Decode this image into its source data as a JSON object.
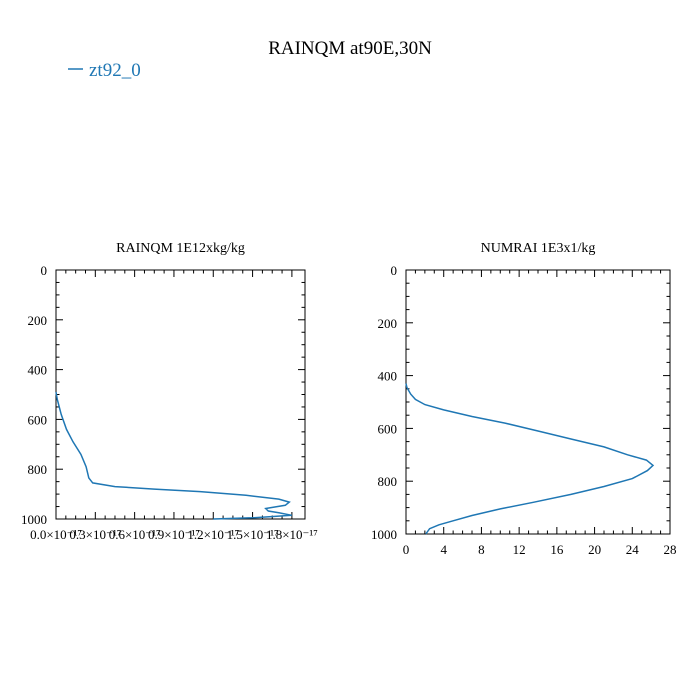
{
  "suptitle": "RAINQM at90E,30N",
  "legend": {
    "label": "zt92_0",
    "color": "#1f77b4",
    "placement": "top-left"
  },
  "chart_data": [
    {
      "type": "line",
      "title": "RAINQM  1E12xkg/kg",
      "xlim": [
        0,
        1.9e-17
      ],
      "ylim": [
        1000,
        0
      ],
      "y_inverted": true,
      "x_ticks": [
        0,
        3e-18,
        6e-18,
        9e-18,
        1.2e-17,
        1.5e-17,
        1.8e-17
      ],
      "x_tick_labels": [
        "0.0×10⁻¹⁷",
        "0.3×10⁻¹⁷",
        "0.6×10⁻¹⁷",
        "0.9×10⁻¹⁷",
        "1.2×10⁻¹⁷",
        "1.5×10⁻¹⁷",
        "1.8×10⁻¹⁷"
      ],
      "y_ticks": [
        0,
        200,
        400,
        600,
        800,
        1000
      ],
      "y_tick_labels": [
        "0",
        "200",
        "400",
        "600",
        "800",
        "1000"
      ],
      "series": [
        {
          "color": "#1f77b4",
          "x": [
            0,
            1e-19,
            4e-19,
            8e-19,
            1.3e-18,
            1.9e-18,
            2.3e-18,
            2.5e-18,
            2.8e-18,
            4.5e-18,
            7.5e-18,
            1.1e-17,
            1.45e-17,
            1.7e-17,
            1.78e-17,
            1.75e-17,
            1.6e-17,
            1.62e-17,
            1.7e-17,
            1.8e-17,
            1.5e-17,
            1.2e-17
          ],
          "y": [
            490,
            520,
            580,
            640,
            690,
            740,
            790,
            835,
            855,
            870,
            880,
            890,
            905,
            920,
            932,
            945,
            958,
            968,
            975,
            985,
            995,
            1000
          ]
        }
      ]
    },
    {
      "type": "line",
      "title": "NUMRAI  1E3x1/kg",
      "xlim": [
        0,
        28
      ],
      "ylim": [
        1000,
        0
      ],
      "y_inverted": true,
      "x_ticks": [
        0,
        4,
        8,
        12,
        16,
        20,
        24,
        28
      ],
      "x_tick_labels": [
        "0",
        "4",
        "8",
        "12",
        "16",
        "20",
        "24",
        "28"
      ],
      "y_ticks": [
        0,
        200,
        400,
        600,
        800,
        1000
      ],
      "y_tick_labels": [
        "0",
        "200",
        "400",
        "600",
        "800",
        "1000"
      ],
      "series": [
        {
          "color": "#1f77b4",
          "x": [
            0,
            0.1,
            0.5,
            1.0,
            2.0,
            4.0,
            7.0,
            10.5,
            14.0,
            17.5,
            21.0,
            23.5,
            25.5,
            26.2,
            25.6,
            24.0,
            21.0,
            17.5,
            13.5,
            10.0,
            7.0,
            5.0,
            3.5,
            2.5,
            2.1
          ],
          "y": [
            430,
            445,
            470,
            490,
            510,
            530,
            555,
            580,
            610,
            640,
            670,
            700,
            720,
            740,
            760,
            790,
            820,
            850,
            880,
            905,
            930,
            950,
            965,
            980,
            1000
          ]
        }
      ]
    }
  ]
}
